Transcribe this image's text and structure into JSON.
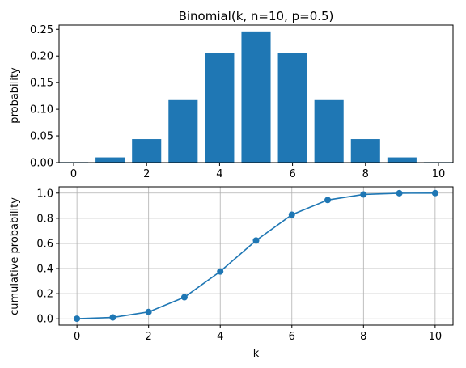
{
  "colors": {
    "series": "#1f77b4",
    "axes": "#000000",
    "grid": "#b0b0b0",
    "background": "#ffffff"
  },
  "chart_data": [
    {
      "type": "bar",
      "title": "Binomial(k, n=10, p=0.5)",
      "xlabel": "",
      "ylabel": "probability",
      "x": [
        0,
        1,
        2,
        3,
        4,
        5,
        6,
        7,
        8,
        9,
        10
      ],
      "values": [
        0.00098,
        0.00977,
        0.04395,
        0.11719,
        0.20508,
        0.24609,
        0.20508,
        0.11719,
        0.04395,
        0.00977,
        0.00098
      ],
      "xlim": [
        -0.4,
        10.4
      ],
      "ylim": [
        0,
        0.258
      ],
      "xticks": [
        0,
        2,
        4,
        6,
        8,
        10
      ],
      "xtick_labels": [
        "0",
        "2",
        "4",
        "6",
        "8",
        "10"
      ],
      "yticks": [
        0.0,
        0.05,
        0.1,
        0.15,
        0.2,
        0.25
      ],
      "ytick_labels": [
        "0.00",
        "0.05",
        "0.10",
        "0.15",
        "0.20",
        "0.25"
      ],
      "grid": false
    },
    {
      "type": "line",
      "title": "",
      "xlabel": "k",
      "ylabel": "cumulative probability",
      "x": [
        0,
        1,
        2,
        3,
        4,
        5,
        6,
        7,
        8,
        9,
        10
      ],
      "values": [
        0.00098,
        0.01074,
        0.05469,
        0.17188,
        0.37695,
        0.62305,
        0.82813,
        0.94531,
        0.98926,
        0.99902,
        1.0
      ],
      "markers": true,
      "xlim": [
        -0.5,
        10.5
      ],
      "ylim": [
        -0.05,
        1.05
      ],
      "xticks": [
        0,
        2,
        4,
        6,
        8,
        10
      ],
      "xtick_labels": [
        "0",
        "2",
        "4",
        "6",
        "8",
        "10"
      ],
      "yticks": [
        0.0,
        0.2,
        0.4,
        0.6,
        0.8,
        1.0
      ],
      "ytick_labels": [
        "0.0",
        "0.2",
        "0.4",
        "0.6",
        "0.8",
        "1.0"
      ],
      "grid": true
    }
  ]
}
